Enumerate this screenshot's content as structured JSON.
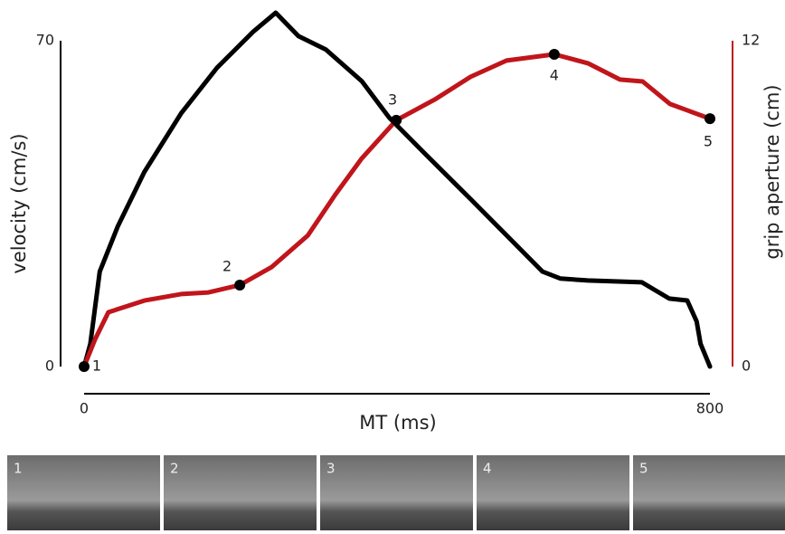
{
  "chart_data": {
    "type": "line",
    "xlabel": "MT (ms)",
    "ylabel": "velocity (cm/s)",
    "y2label": "grip aperture (cm)",
    "xlim": [
      0,
      800
    ],
    "xticks": [
      0,
      800
    ],
    "ylim": [
      0,
      70
    ],
    "yticks": [
      0,
      70
    ],
    "y2lim": [
      0,
      12
    ],
    "y2ticks": [
      0,
      12
    ],
    "y2color": "#c0151b",
    "series": [
      {
        "name": "velocity",
        "color": "#000000",
        "axis": "y",
        "x": [
          0,
          8,
          20,
          43,
          77,
          124,
          170,
          216,
          245,
          274,
          309,
          355,
          390,
          436,
          494,
          540,
          586,
          609,
          644,
          713,
          748,
          771,
          783,
          788,
          800
        ],
        "values": [
          0,
          4.9,
          20.4,
          30.1,
          41.8,
          54.4,
          64.2,
          71.9,
          76.0,
          71.0,
          68.1,
          61.3,
          53.5,
          45.7,
          36.0,
          28.2,
          20.4,
          18.9,
          18.5,
          18.1,
          14.6,
          14.2,
          9.7,
          4.9,
          0
        ]
      },
      {
        "name": "grip aperture",
        "color": "#c0151b",
        "axis": "y2",
        "x": [
          0,
          14,
          31,
          77,
          124,
          159,
          199,
          240,
          286,
          321,
          355,
          399,
          448,
          494,
          540,
          601,
          644,
          685,
          714,
          749,
          800
        ],
        "values": [
          0,
          1.0,
          2.0,
          2.43,
          2.67,
          2.73,
          3.0,
          3.67,
          4.83,
          6.33,
          7.67,
          9.07,
          9.83,
          10.67,
          11.27,
          11.5,
          11.17,
          10.57,
          10.5,
          9.67,
          9.13
        ]
      }
    ],
    "annotations": [
      {
        "label": "1",
        "x": 0,
        "y": 0
      },
      {
        "label": "2",
        "x": 199,
        "y": 3.0
      },
      {
        "label": "3",
        "x": 399,
        "y": 9.07
      },
      {
        "label": "4",
        "x": 601,
        "y": 11.5
      },
      {
        "label": "5",
        "x": 800,
        "y": 9.13
      }
    ]
  },
  "frames": {
    "labels": [
      "1",
      "2",
      "3",
      "4",
      "5"
    ]
  }
}
